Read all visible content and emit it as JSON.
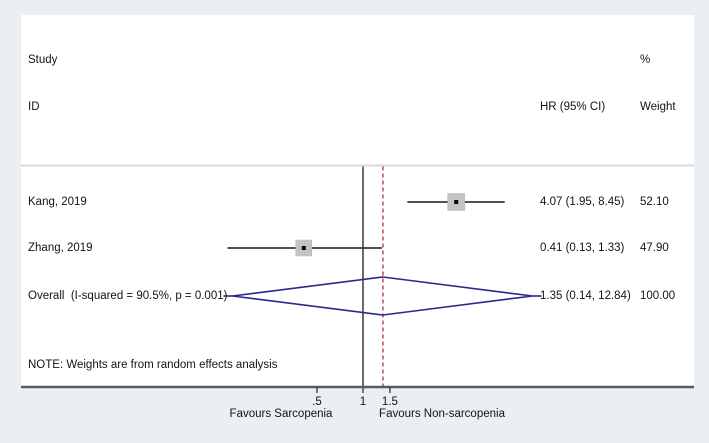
{
  "chart_data": {
    "type": "forest",
    "columns": {
      "study": "Study",
      "id": "ID",
      "pct": "%",
      "hr_ci": "HR (95% CI)",
      "weight": "Weight"
    },
    "studies": [
      {
        "label": "Kang, 2019",
        "hr": 4.07,
        "ci_low": 1.95,
        "ci_high": 8.45,
        "hr_ci_text": "4.07 (1.95, 8.45)",
        "weight": 52.1,
        "weight_text": "52.10"
      },
      {
        "label": "Zhang, 2019",
        "hr": 0.41,
        "ci_low": 0.13,
        "ci_high": 1.33,
        "hr_ci_text": "0.41 (0.13, 1.33)",
        "weight": 47.9,
        "weight_text": "47.90"
      }
    ],
    "overall": {
      "label": "Overall  (I-squared = 90.5%, p = 0.001)",
      "hr": 1.35,
      "ci_low": 0.14,
      "ci_high": 12.84,
      "hr_ci_text": "1.35 (0.14, 12.84)",
      "weight_text": "100.00"
    },
    "note": "NOTE: Weights are from random effects analysis",
    "x_axis": {
      "scale": "log",
      "ticks": [
        0.5,
        1,
        1.5
      ],
      "tick_labels": [
        ".5",
        "1",
        "1.5"
      ],
      "ref_line": 1,
      "overall_ref_line": 1.35,
      "left_label": "Favours Sarcopenia",
      "right_label": "Favours Non-sarcopenia"
    },
    "legend_position": "none",
    "grid": false,
    "colors": {
      "background": "#e9eff2",
      "plot_background": "#ffffff",
      "diamond": "#28288c",
      "ref_dashed": "#a93434",
      "ref_solid": "#1a1a1a",
      "ci_line": "#383838",
      "weight_box": "#c4c4c4",
      "axis_line": "#535e64",
      "header_separator": "#d9d9d9"
    }
  }
}
